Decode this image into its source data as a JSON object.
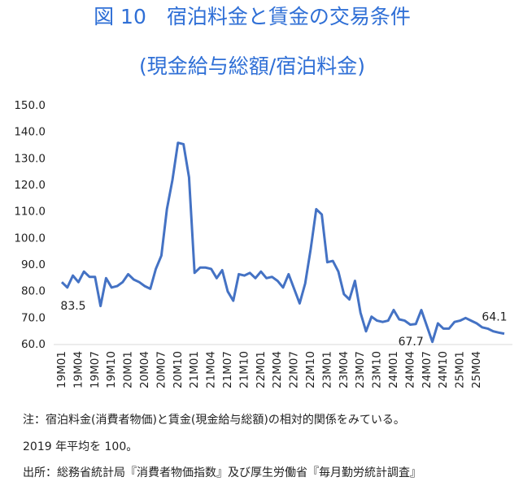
{
  "chart_data": {
    "type": "line",
    "title": "図 10　宿泊料金と賃金の交易条件",
    "subtitle": "(現金給与総額/宿泊料金)",
    "notes": [
      "注：宿泊料金(消費者物価)と賃金(現金給与総額)の相対的関係をみている。",
      "2019 年平均を 100。",
      "出所：総務省統計局『消費者物価指数』及び厚生労働省『毎月勤労統計調査』"
    ],
    "categories": [
      "19M01",
      null,
      null,
      "19M04",
      null,
      null,
      "19M07",
      null,
      null,
      "19M10",
      null,
      null,
      "20M01",
      null,
      null,
      "20M04",
      null,
      null,
      "20M07",
      null,
      null,
      "20M10",
      null,
      null,
      "21M01",
      null,
      null,
      "21M04",
      null,
      null,
      "21M07",
      null,
      null,
      "21M10",
      null,
      null,
      "22M01",
      null,
      null,
      "22M04",
      null,
      null,
      "22M07",
      null,
      null,
      "22M10",
      null,
      null,
      "23M01",
      null,
      null,
      "23M04",
      null,
      null,
      "23M07",
      null,
      null,
      "23M10",
      null,
      null,
      "24M01",
      null,
      null,
      "24M04",
      null,
      null,
      "24M07",
      null,
      null,
      "24M10",
      null,
      null,
      "25M01",
      null,
      null,
      "25M04",
      null,
      null,
      null,
      null,
      null
    ],
    "series": [
      {
        "color": "#4472c4",
        "values": [
          83.5,
          81.5,
          86,
          83.5,
          87.5,
          85.5,
          85.5,
          74.5,
          85,
          81.5,
          82,
          83.5,
          86.5,
          84.5,
          83.5,
          82,
          81,
          88.5,
          93.5,
          111,
          122,
          136,
          135.5,
          123,
          87,
          89,
          89,
          88.5,
          85,
          88,
          80,
          76.5,
          86.5,
          86,
          87,
          85,
          87.5,
          85,
          85.5,
          84,
          81.5,
          86.5,
          81,
          75.5,
          83,
          96,
          111,
          109,
          91,
          91.5,
          87.5,
          79,
          77,
          84,
          72,
          65,
          70.5,
          69,
          68.5,
          69,
          73,
          69.5,
          69,
          67.5,
          67.7,
          73,
          67,
          61,
          68,
          66,
          66,
          68.5,
          69,
          70,
          69,
          68,
          66.5,
          66,
          65,
          64.5,
          64.1
        ],
        "value_labels": [
          "83.5",
          null,
          null,
          null,
          null,
          null,
          null,
          null,
          null,
          null,
          null,
          null,
          null,
          null,
          null,
          null,
          null,
          null,
          null,
          null,
          null,
          null,
          null,
          null,
          null,
          null,
          null,
          null,
          null,
          null,
          null,
          null,
          null,
          null,
          null,
          null,
          null,
          null,
          null,
          null,
          null,
          null,
          null,
          null,
          null,
          null,
          null,
          null,
          null,
          null,
          null,
          null,
          null,
          null,
          null,
          null,
          null,
          null,
          null,
          null,
          null,
          null,
          null,
          null,
          "67.7",
          null,
          null,
          null,
          null,
          null,
          null,
          null,
          null,
          null,
          null,
          null,
          null,
          null,
          null,
          null,
          "64.1"
        ]
      }
    ],
    "ylim": [
      60,
      150
    ],
    "yticks": [
      {
        "value": 60,
        "label": "60.0"
      },
      {
        "value": 70,
        "label": "70.0"
      },
      {
        "value": 80,
        "label": "80.0"
      },
      {
        "value": 90,
        "label": "90.0"
      },
      {
        "value": 100,
        "label": "100.0"
      },
      {
        "value": 110,
        "label": "110.0"
      },
      {
        "value": 120,
        "label": "120.0"
      },
      {
        "value": 130,
        "label": "130.0"
      },
      {
        "value": 140,
        "label": "140.0"
      },
      {
        "value": 150,
        "label": "150.0"
      }
    ],
    "grid": false
  }
}
